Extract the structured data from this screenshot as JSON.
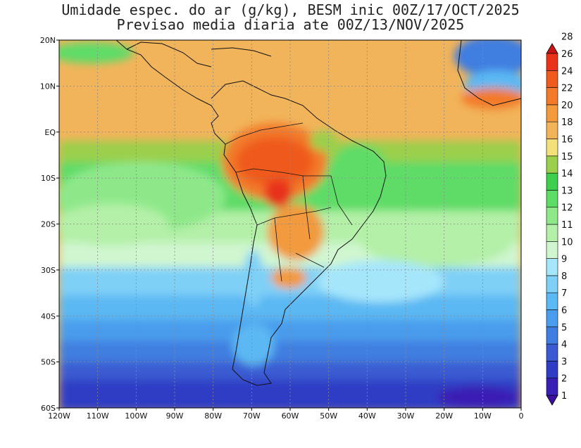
{
  "title_line1": "Umidade espec. do ar (g/kg), BESM inic 00Z/17/OCT/2025",
  "title_line2": "Previsao media diaria ate 00Z/13/NOV/2025",
  "map": {
    "lon_range": [
      -120,
      0
    ],
    "lat_range": [
      -60,
      20
    ],
    "x_ticks": [
      {
        "lon": -120,
        "label": "120W"
      },
      {
        "lon": -110,
        "label": "110W"
      },
      {
        "lon": -100,
        "label": "100W"
      },
      {
        "lon": -90,
        "label": "90W"
      },
      {
        "lon": -80,
        "label": "80W"
      },
      {
        "lon": -70,
        "label": "70W"
      },
      {
        "lon": -60,
        "label": "60W"
      },
      {
        "lon": -50,
        "label": "50W"
      },
      {
        "lon": -40,
        "label": "40W"
      },
      {
        "lon": -30,
        "label": "30W"
      },
      {
        "lon": -20,
        "label": "20W"
      },
      {
        "lon": -10,
        "label": "10W"
      },
      {
        "lon": 0,
        "label": "0"
      }
    ],
    "y_ticks": [
      {
        "lat": 20,
        "label": "20N"
      },
      {
        "lat": 10,
        "label": "10N"
      },
      {
        "lat": 0,
        "label": "EQ"
      },
      {
        "lat": -10,
        "label": "10S"
      },
      {
        "lat": -20,
        "label": "20S"
      },
      {
        "lat": -30,
        "label": "30S"
      },
      {
        "lat": -40,
        "label": "40S"
      },
      {
        "lat": -50,
        "label": "50S"
      },
      {
        "lat": -60,
        "label": "60S"
      }
    ]
  },
  "colorbar": {
    "levels": [
      {
        "label": "1",
        "color": "#3b0fa0"
      },
      {
        "label": "2",
        "color": "#3a1fb4"
      },
      {
        "label": "3",
        "color": "#2f3cc4"
      },
      {
        "label": "4",
        "color": "#3a5bd2"
      },
      {
        "label": "5",
        "color": "#3f7ee0"
      },
      {
        "label": "6",
        "color": "#4a9cec"
      },
      {
        "label": "7",
        "color": "#5bb8f3"
      },
      {
        "label": "8",
        "color": "#7fd0f7"
      },
      {
        "label": "9",
        "color": "#a6e6fb"
      },
      {
        "label": "10",
        "color": "#d0f6d0"
      },
      {
        "label": "11",
        "color": "#b4f0a8"
      },
      {
        "label": "12",
        "color": "#8ee88a"
      },
      {
        "label": "13",
        "color": "#5edc68"
      },
      {
        "label": "14",
        "color": "#3fcf4e"
      },
      {
        "label": "15",
        "color": "#9ccf4c"
      },
      {
        "label": "16",
        "color": "#f2e07a"
      },
      {
        "label": "18",
        "color": "#f2b45a"
      },
      {
        "label": "20",
        "color": "#f29a3c"
      },
      {
        "label": "22",
        "color": "#f27a2a"
      },
      {
        "label": "24",
        "color": "#ef5a1e"
      },
      {
        "label": "26",
        "color": "#e8321a"
      },
      {
        "label": "28",
        "color": "#c81414"
      }
    ]
  }
}
